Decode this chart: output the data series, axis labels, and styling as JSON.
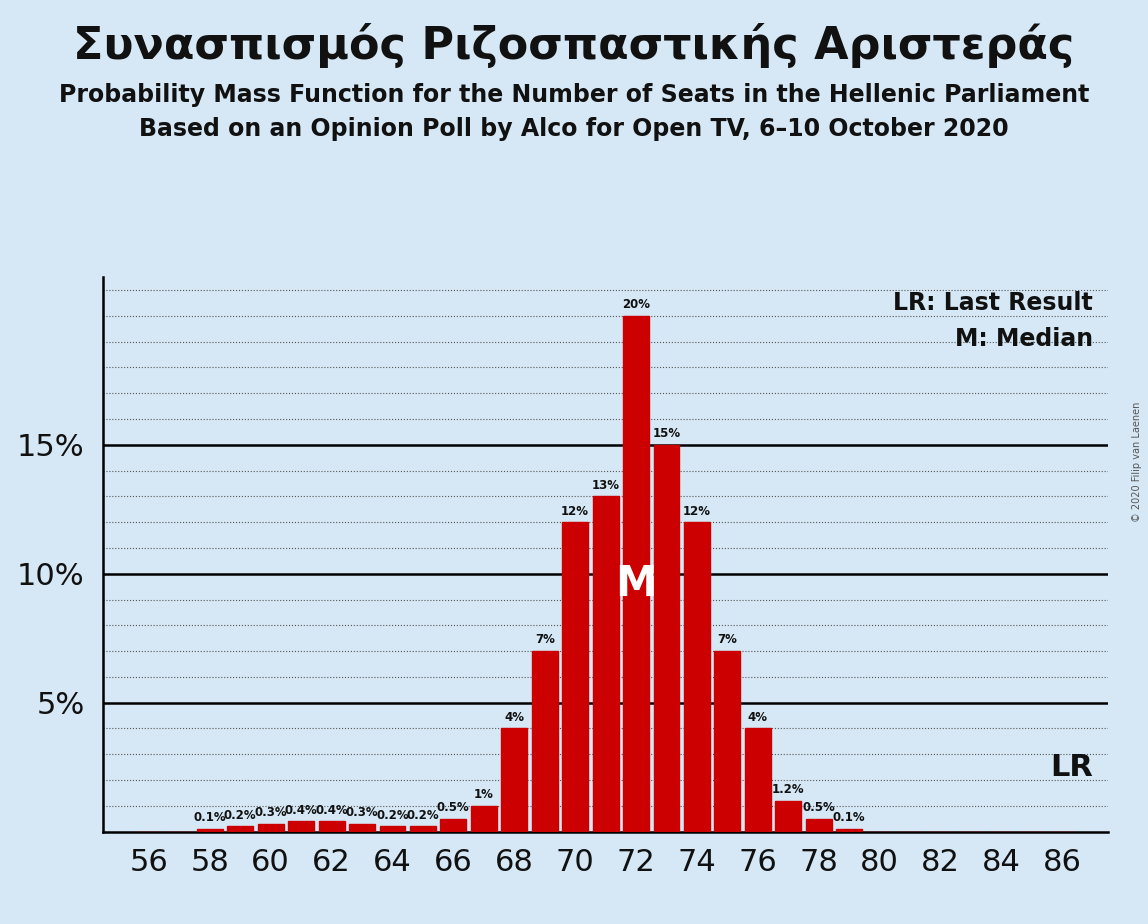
{
  "title_greek": "Συνασπισμός Ριζοσπαστικής Αριστεράς",
  "subtitle1": "Probability Mass Function for the Number of Seats in the Hellenic Parliament",
  "subtitle2": "Based on an Opinion Poll by Alco for Open TV, 6–10 October 2020",
  "copyright": "© 2020 Filip van Laenen",
  "legend_lr": "LR: Last Result",
  "legend_m": "M: Median",
  "seats": [
    56,
    57,
    58,
    59,
    60,
    61,
    62,
    63,
    64,
    65,
    66,
    67,
    68,
    69,
    70,
    71,
    72,
    73,
    74,
    75,
    76,
    77,
    78,
    79,
    80,
    81,
    82,
    83,
    84,
    85,
    86
  ],
  "probs": [
    0.0,
    0.0,
    0.1,
    0.2,
    0.3,
    0.4,
    0.4,
    0.3,
    0.2,
    0.2,
    0.5,
    1.0,
    4.0,
    7.0,
    12.0,
    13.0,
    20.0,
    15.0,
    12.0,
    7.0,
    4.0,
    1.2,
    0.5,
    0.1,
    0.0,
    0.0,
    0.0,
    0.0,
    0.0,
    0.0,
    0.0
  ],
  "bar_color": "#cc0000",
  "background_color": "#d6e8f5",
  "text_color": "#111111",
  "median_seat": 72,
  "lr_seat": 79,
  "ylim_max": 21.5,
  "yticks": [
    5,
    10,
    15
  ],
  "xlabel_seats": [
    56,
    58,
    60,
    62,
    64,
    66,
    68,
    70,
    72,
    74,
    76,
    78,
    80,
    82,
    84,
    86
  ],
  "bar_label_fontsize": 8.5,
  "m_fontsize": 30,
  "lr_text_fontsize": 22,
  "legend_fontsize": 17,
  "ytick_fontsize": 22,
  "xtick_fontsize": 22,
  "title_fontsize": 32,
  "subtitle_fontsize": 17
}
